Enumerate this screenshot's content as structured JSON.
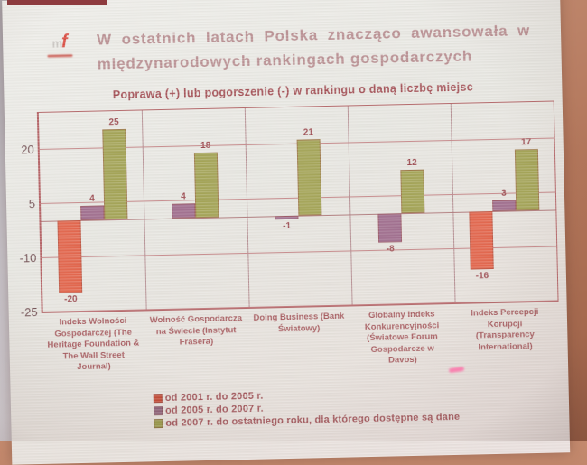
{
  "logo": {
    "gray_letter": "m",
    "red_letter": "f"
  },
  "header": {
    "title_line1": "W ostatnich latach Polska znacząco awansowała w",
    "title_line2": "międzynarodowych rankingach gospodarczych"
  },
  "chart_data": {
    "type": "bar",
    "title": "Poprawa (+) lub pogorszenie (-) w rankingu o daną liczbę miejsc",
    "categories": [
      "Indeks Wolności Gospodarczej (The Heritage Foundation & The Wall Street Journal)",
      "Wolność Gospodarcza na Świecie (Instytut Frasera)",
      "Doing Business (Bank Światowy)",
      "Globalny Indeks Konkurencyjności (Światowe Forum Gospodarcze w Davos)",
      "Indeks Percepcji Korupcji (Transparency International)"
    ],
    "series": [
      {
        "name": "od 2001 r. do 2005 r.",
        "color": "#c24a36",
        "bar_color": "#e2664d",
        "values": [
          -20,
          null,
          null,
          null,
          -16
        ]
      },
      {
        "name": "od 2005 r. do 2007 r.",
        "color": "#8e6278",
        "bar_color": "#a06e8e",
        "values": [
          4,
          4,
          -1,
          -8,
          3
        ]
      },
      {
        "name": "od 2007 r. do ostatniego roku, dla którego dostępne są dane",
        "color": "#9a9a4c",
        "bar_color": "#a4a457",
        "values": [
          25,
          18,
          21,
          12,
          17
        ]
      }
    ],
    "ylim": [
      -25,
      30
    ],
    "yticks": [
      20,
      5,
      -10,
      -25
    ],
    "grid": true,
    "value_labels": true,
    "legend_position": "bottom-left"
  }
}
